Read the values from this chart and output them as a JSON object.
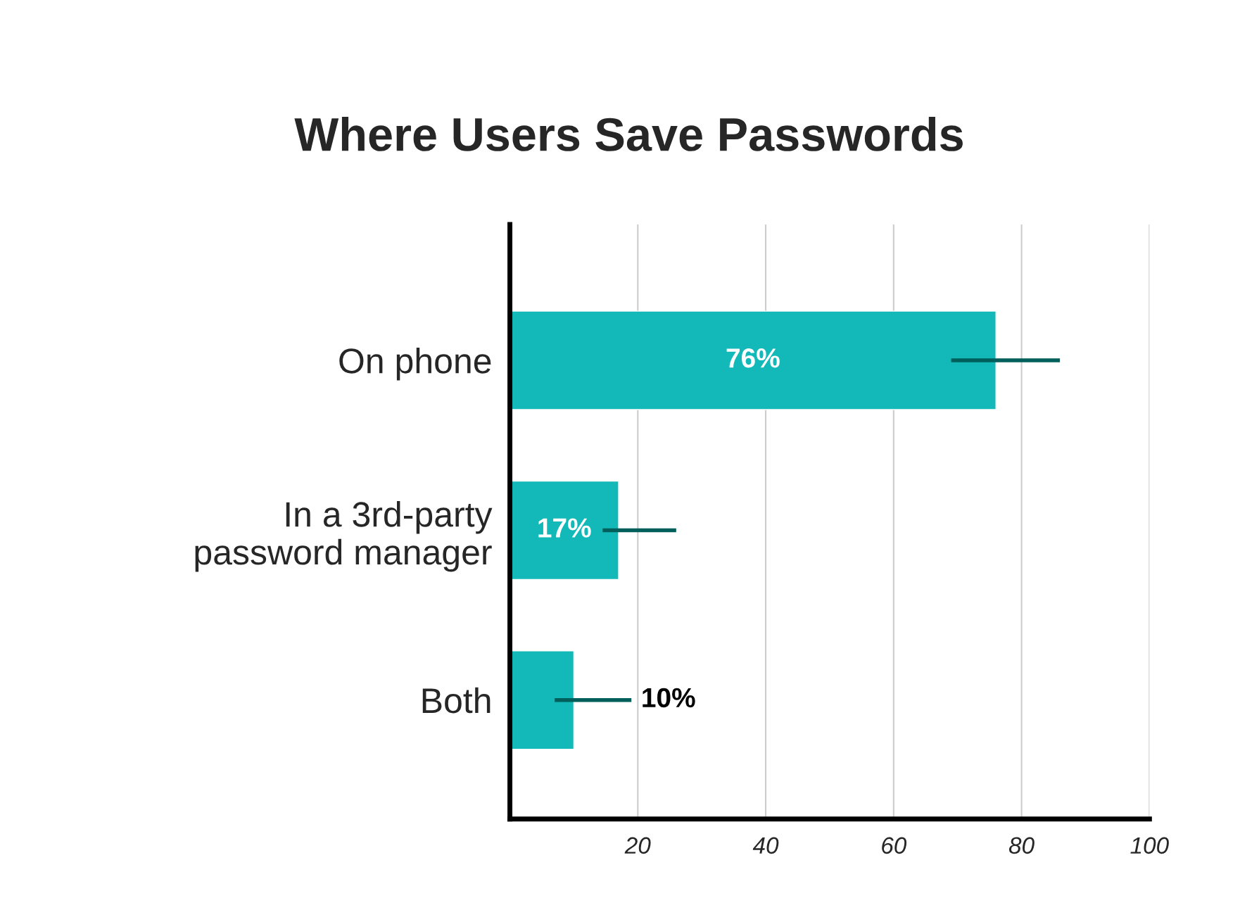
{
  "chart_data": {
    "type": "bar",
    "orientation": "horizontal",
    "title": "Where Users Save Passwords",
    "categories": [
      "On phone",
      "In a 3rd-party\npassword manager",
      "Both"
    ],
    "series": [
      {
        "color": "#13b8b8",
        "values": [
          76,
          17,
          10
        ],
        "value_labels": [
          "76%",
          "17%",
          "10%"
        ],
        "errors": [
          [
            69,
            86
          ],
          [
            14.5,
            26
          ],
          [
            7,
            19
          ]
        ]
      }
    ],
    "xlim": [
      0,
      100
    ],
    "xticks": [
      20,
      40,
      60,
      80,
      100
    ],
    "grid": "x",
    "legend": false
  }
}
